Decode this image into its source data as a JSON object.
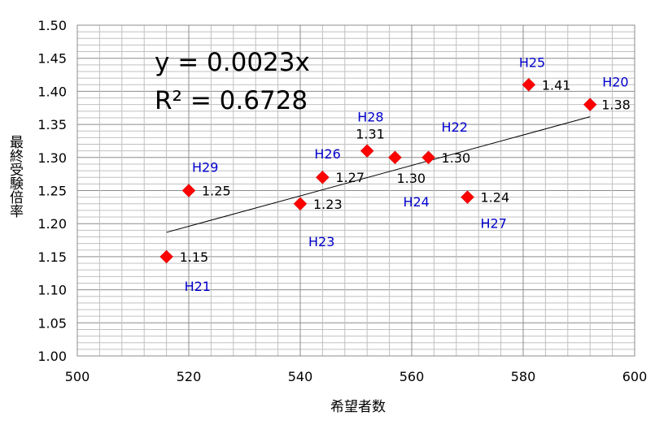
{
  "chart_data": {
    "type": "scatter",
    "title": "",
    "xlabel": "希望者数",
    "ylabel": "最終受験倍率",
    "xlim": [
      500,
      600
    ],
    "ylim": [
      1.0,
      1.5
    ],
    "x_ticks": [
      "500",
      "520",
      "540",
      "560",
      "580",
      "600"
    ],
    "y_ticks": [
      "1.00",
      "1.05",
      "1.10",
      "1.15",
      "1.20",
      "1.25",
      "1.30",
      "1.35",
      "1.40",
      "1.45",
      "1.50"
    ],
    "grid": true,
    "marker_color": "#FF0000",
    "label_color": "#0000CC",
    "points": [
      {
        "name": "H20",
        "x": 592,
        "y": 1.38,
        "value_label": "1.38"
      },
      {
        "name": "H21",
        "x": 516,
        "y": 1.15,
        "value_label": "1.15"
      },
      {
        "name": "H22",
        "x": 563,
        "y": 1.3,
        "value_label": "1.30"
      },
      {
        "name": "H23",
        "x": 540,
        "y": 1.23,
        "value_label": "1.23"
      },
      {
        "name": "H24",
        "x": 557,
        "y": 1.3,
        "value_label": "1.30"
      },
      {
        "name": "H25",
        "x": 581,
        "y": 1.41,
        "value_label": "1.41"
      },
      {
        "name": "H26",
        "x": 544,
        "y": 1.27,
        "value_label": "1.27"
      },
      {
        "name": "H27",
        "x": 570,
        "y": 1.24,
        "value_label": "1.24"
      },
      {
        "name": "H28",
        "x": 552,
        "y": 1.31,
        "value_label": "1.31"
      },
      {
        "name": "H29",
        "x": 520,
        "y": 1.25,
        "value_label": "1.25"
      }
    ],
    "trendline": {
      "slope": 0.0023,
      "intercept": 0,
      "x_range": [
        516,
        592
      ]
    },
    "annotations": {
      "equation": "y = 0.0023x",
      "r_squared": "R² = 0.6728"
    }
  }
}
